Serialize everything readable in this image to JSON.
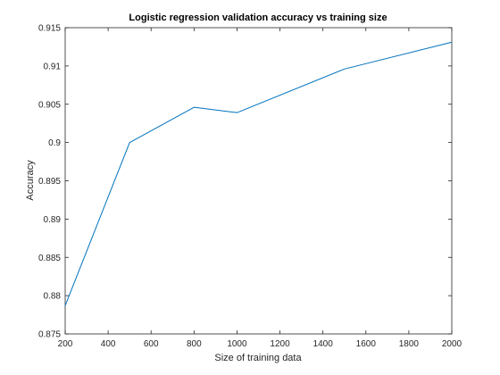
{
  "chart_data": {
    "type": "line",
    "title": "Logistic regression validation accuracy vs training size",
    "xlabel": "Size of training data",
    "ylabel": "Accuracy",
    "xlim": [
      200,
      2000
    ],
    "ylim": [
      0.875,
      0.915
    ],
    "x_ticks": [
      200,
      400,
      600,
      800,
      1000,
      1200,
      1400,
      1600,
      1800,
      2000
    ],
    "y_ticks": [
      0.875,
      0.88,
      0.885,
      0.89,
      0.895,
      0.9,
      0.905,
      0.91,
      0.915
    ],
    "x_tick_labels": [
      "200",
      "400",
      "600",
      "800",
      "1000",
      "1200",
      "1400",
      "1600",
      "1800",
      "2000"
    ],
    "y_tick_labels": [
      "0.875",
      "0.88",
      "0.885",
      "0.89",
      "0.895",
      "0.9",
      "0.905",
      "0.91",
      "0.915"
    ],
    "grid": false,
    "series": [
      {
        "color": "#0072bd",
        "x": [
          200,
          500,
          800,
          1000,
          1500,
          2000
        ],
        "y": [
          0.8787,
          0.9,
          0.9046,
          0.9039,
          0.9096,
          0.9131
        ]
      }
    ]
  }
}
